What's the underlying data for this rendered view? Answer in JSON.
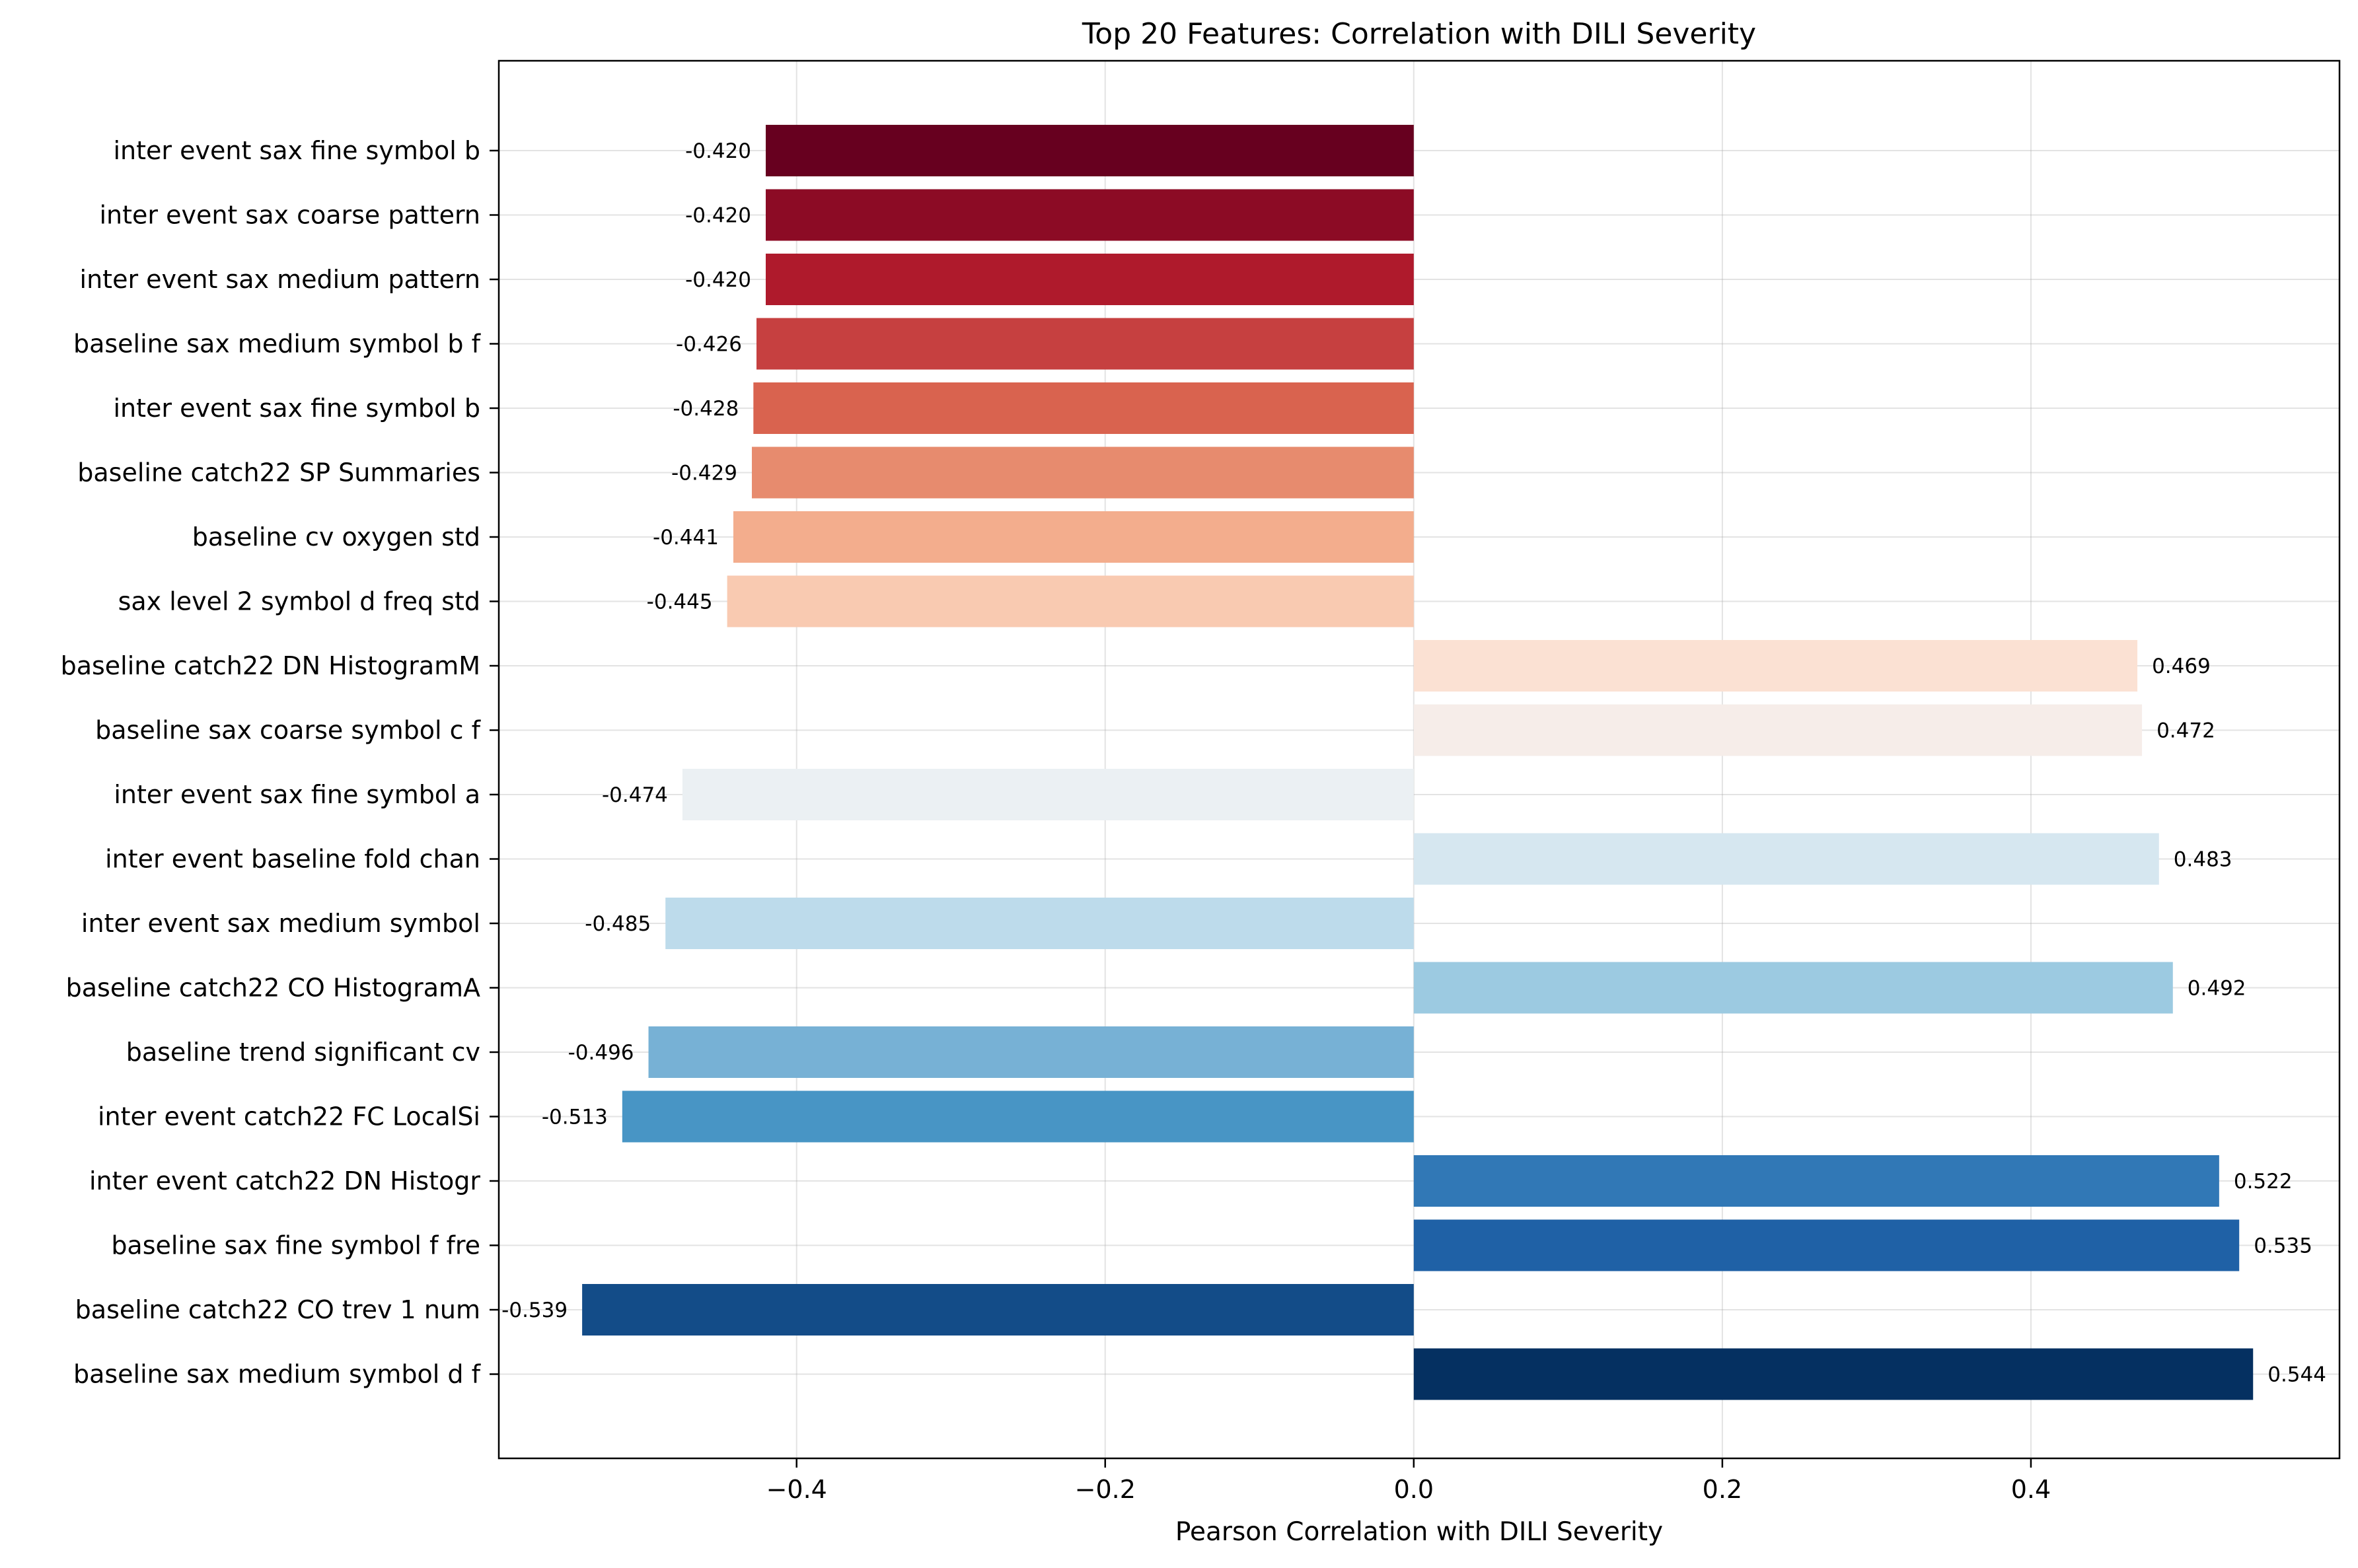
{
  "chart_data": {
    "type": "bar",
    "orientation": "horizontal",
    "title": "Top 20 Features: Correlation with DILI Severity",
    "xlabel": "Pearson Correlation with DILI Severity",
    "ylabel": "",
    "xlim": [
      -0.593,
      0.6
    ],
    "xticks": [
      -0.4,
      -0.2,
      0.0,
      0.2,
      0.4
    ],
    "xtick_labels": [
      "−0.4",
      "−0.2",
      "0.0",
      "0.2",
      "0.4"
    ],
    "grid": true,
    "legend": "none",
    "colormap": "RdBu",
    "categories": [
      "inter event sax fine symbol b ",
      "inter event sax coarse pattern",
      "inter event sax medium pattern",
      "baseline sax medium symbol b f",
      "inter event sax fine symbol b ",
      "baseline catch22 SP Summaries ",
      "baseline cv oxygen std",
      "sax level 2 symbol d freq std",
      "baseline catch22 DN HistogramM",
      "baseline sax coarse symbol c f",
      "inter event sax fine symbol a ",
      "inter event baseline fold chan",
      "inter event sax medium symbol ",
      "baseline catch22 CO HistogramA",
      "baseline trend significant cv",
      "inter event catch22 FC LocalSi",
      "inter event catch22 DN Histogr",
      "baseline sax fine symbol f fre",
      "baseline catch22 CO trev 1 num",
      "baseline sax medium symbol d f"
    ],
    "values": [
      -0.42,
      -0.42,
      -0.42,
      -0.426,
      -0.428,
      -0.429,
      -0.441,
      -0.445,
      0.469,
      0.472,
      -0.474,
      0.483,
      -0.485,
      0.492,
      -0.496,
      -0.513,
      0.522,
      0.535,
      -0.539,
      0.544
    ],
    "value_labels": [
      "-0.420",
      "-0.420",
      "-0.420",
      "-0.426",
      "-0.428",
      "-0.429",
      "-0.441",
      "-0.445",
      "0.469",
      "0.472",
      "-0.474",
      "0.483",
      "-0.485",
      "0.492",
      "-0.496",
      "-0.513",
      "0.522",
      "0.535",
      "-0.539",
      "0.544"
    ],
    "colors": [
      "#67001f",
      "#8c0b25",
      "#af1a2c",
      "#c64040",
      "#d9634f",
      "#e78b6e",
      "#f3ad8d",
      "#f9cab1",
      "#fbe1d3",
      "#f6ede9",
      "#ebf0f3",
      "#d6e7f0",
      "#bddbeb",
      "#9ccae1",
      "#77b1d5",
      "#4895c5",
      "#3178b6",
      "#1f61a6",
      "#134c88",
      "#053061"
    ]
  }
}
